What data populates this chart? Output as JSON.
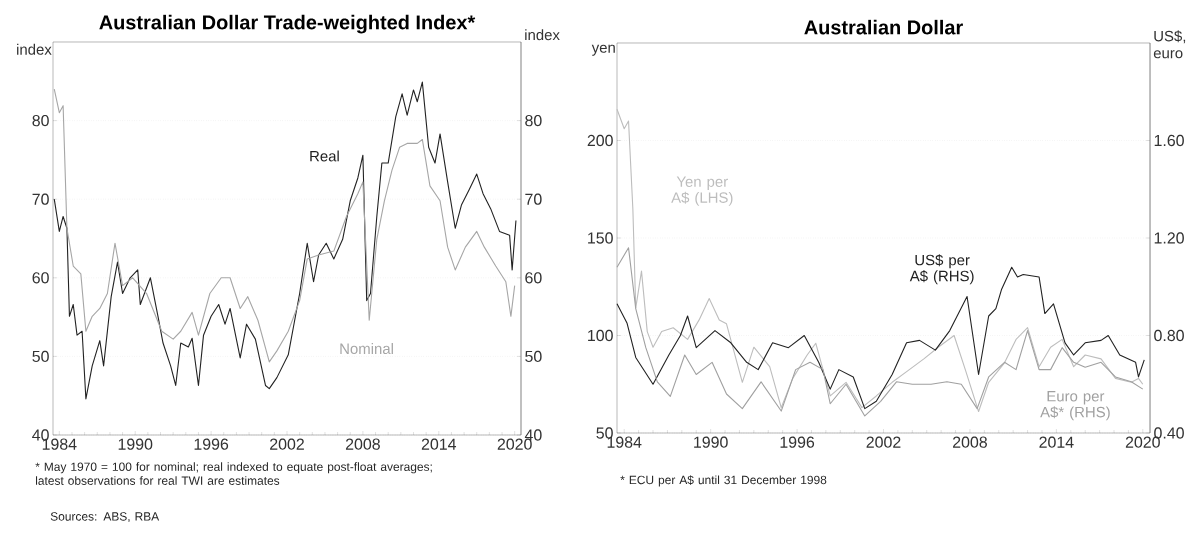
{
  "chart_data": [
    {
      "type": "line",
      "title": "Australian Dollar Trade-weighted Index*",
      "ylabel": "index",
      "y2label": "index",
      "grid": "y",
      "xlim": [
        1984,
        2021
      ],
      "xticks": [
        {
          "value": 1984.5,
          "label": "1984"
        },
        {
          "value": 1990.5,
          "label": "1990"
        },
        {
          "value": 1996.5,
          "label": "1996"
        },
        {
          "value": 2002.5,
          "label": "2002"
        },
        {
          "value": 2008.5,
          "label": "2008"
        },
        {
          "value": 2014.5,
          "label": "2014"
        },
        {
          "value": 2020.5,
          "label": "2020"
        }
      ],
      "ylim": [
        40,
        90
      ],
      "yticks": [
        40,
        50,
        60,
        70,
        80
      ],
      "y2lim": [
        40,
        90
      ],
      "y2ticks": [
        40,
        50,
        60,
        70,
        80
      ],
      "series": [
        {
          "name": "Real",
          "color": "#222222",
          "x": [
            1984.1,
            1984.5,
            1984.8,
            1985.1,
            1985.3,
            1985.6,
            1985.9,
            1986.3,
            1986.6,
            1987.1,
            1987.7,
            1988.0,
            1988.6,
            1989.1,
            1989.5,
            1990.1,
            1990.7,
            1990.9,
            1991.7,
            1992.3,
            1992.7,
            1993.3,
            1993.7,
            1994.1,
            1994.7,
            1995.0,
            1995.5,
            1995.9,
            1996.5,
            1997.1,
            1997.6,
            1998.0,
            1998.8,
            1999.3,
            2000.0,
            2000.8,
            2001.1,
            2001.7,
            2002.6,
            2003.5,
            2004.1,
            2004.6,
            2005.0,
            2005.6,
            2006.2,
            2006.9,
            2007.5,
            2008.1,
            2008.5,
            2008.8,
            2009.1,
            2009.6,
            2010.0,
            2010.5,
            2011.1,
            2011.6,
            2012.0,
            2012.5,
            2012.8,
            2013.2,
            2013.7,
            2014.2,
            2014.6,
            2015.2,
            2015.8,
            2016.3,
            2016.9,
            2017.5,
            2018.0,
            2018.6,
            2019.3,
            2020.1,
            2020.3,
            2020.6
          ],
          "values": [
            70.0,
            65.9,
            67.8,
            66.3,
            55.1,
            56.6,
            52.7,
            53.2,
            44.6,
            48.8,
            52.0,
            48.8,
            57.6,
            62.0,
            58.0,
            60.0,
            61.0,
            56.6,
            60.0,
            55.1,
            51.7,
            48.8,
            46.3,
            51.7,
            51.2,
            52.3,
            46.3,
            52.7,
            55.1,
            56.6,
            54.1,
            56.1,
            49.8,
            54.1,
            52.2,
            46.3,
            45.9,
            47.3,
            50.2,
            58.0,
            64.4,
            59.5,
            62.9,
            64.4,
            62.4,
            64.9,
            69.8,
            72.7,
            75.6,
            57.1,
            58.0,
            67.8,
            74.6,
            74.6,
            80.5,
            83.4,
            80.7,
            83.9,
            82.4,
            84.9,
            76.6,
            74.6,
            78.3,
            72.2,
            66.3,
            69.3,
            71.2,
            73.2,
            70.7,
            68.8,
            65.9,
            65.4,
            61.0,
            67.3
          ]
        },
        {
          "name": "Nominal",
          "color": "#a6a6a6",
          "x": [
            1984.1,
            1984.5,
            1984.8,
            1985.1,
            1985.6,
            1986.2,
            1986.6,
            1987.1,
            1987.7,
            1988.3,
            1988.9,
            1989.5,
            1990.3,
            1991.4,
            1992.6,
            1993.5,
            1994.1,
            1995.0,
            1995.5,
            1996.4,
            1997.3,
            1998.0,
            1998.8,
            1999.4,
            2000.2,
            2001.1,
            2001.7,
            2002.6,
            2003.5,
            2004.1,
            2005.0,
            2006.2,
            2007.2,
            2008.1,
            2008.5,
            2009.0,
            2009.6,
            2010.2,
            2010.8,
            2011.4,
            2012.0,
            2012.8,
            2013.2,
            2013.8,
            2014.6,
            2015.2,
            2015.8,
            2016.6,
            2017.5,
            2018.1,
            2019.0,
            2019.8,
            2020.2,
            2020.5
          ],
          "values": [
            84.0,
            81.0,
            81.9,
            66.3,
            61.5,
            60.5,
            53.2,
            55.1,
            56.1,
            58.0,
            64.4,
            59.0,
            60.0,
            58.0,
            53.2,
            52.2,
            53.2,
            55.6,
            52.7,
            58.0,
            60.0,
            60.0,
            56.1,
            57.6,
            54.6,
            49.3,
            50.7,
            53.2,
            57.1,
            62.4,
            62.9,
            63.4,
            67.8,
            70.7,
            72.2,
            54.6,
            64.9,
            69.8,
            73.7,
            76.6,
            77.1,
            77.1,
            77.6,
            71.7,
            69.8,
            63.9,
            61.0,
            63.9,
            65.9,
            63.9,
            61.5,
            59.5,
            55.1,
            59.0
          ]
        }
      ],
      "annotations": [
        "* May 1970 = 100 for nominal; real indexed to equate post-float averages; latest observations for real TWI are estimates",
        "Sources: ABS, RBA"
      ]
    },
    {
      "type": "line",
      "title": "Australian Dollar",
      "ylabel": "yen",
      "y2label": "US$, euro",
      "grid": "y",
      "xlim": [
        1984,
        2021
      ],
      "xticks": [
        {
          "value": 1984.5,
          "label": "1984"
        },
        {
          "value": 1990.5,
          "label": "1990"
        },
        {
          "value": 1996.5,
          "label": "1996"
        },
        {
          "value": 2002.5,
          "label": "2002"
        },
        {
          "value": 2008.5,
          "label": "2008"
        },
        {
          "value": 2014.5,
          "label": "2014"
        },
        {
          "value": 2020.5,
          "label": "2020"
        }
      ],
      "ylim": [
        50,
        250
      ],
      "yticks": [
        50,
        100,
        150,
        200
      ],
      "y2lim": [
        0.4,
        2.0
      ],
      "y2ticks": [
        {
          "value": 0.4,
          "label": "0.40"
        },
        {
          "value": 0.8,
          "label": "0.80"
        },
        {
          "value": 1.2,
          "label": "1.20"
        },
        {
          "value": 1.6,
          "label": "1.60"
        }
      ],
      "series": [
        {
          "name": "Yen per A$ (LHS)",
          "color": "#bdbdbd",
          "x": [
            1984.0,
            1984.5,
            1984.8,
            1985.1,
            1985.3,
            1985.7,
            1986.1,
            1986.5,
            1987.1,
            1987.9,
            1988.9,
            1989.7,
            1990.4,
            1991.1,
            1991.6,
            1992.7,
            1993.5,
            1994.6,
            1995.4,
            1996.2,
            1997.2,
            1997.8,
            1998.8,
            1999.9,
            2001.0,
            2002.0,
            2003.1,
            2004.2,
            2005.3,
            2006.3,
            2007.4,
            2008.2,
            2009.1,
            2009.8,
            2010.9,
            2011.7,
            2012.5,
            2013.3,
            2014.1,
            2014.9,
            2015.7,
            2016.5,
            2017.6,
            2018.6,
            2019.7,
            2020.2,
            2020.5
          ],
          "values": [
            216,
            206,
            210,
            165,
            114,
            133,
            102,
            94,
            102,
            104,
            98,
            108,
            119,
            108,
            106,
            76,
            94,
            84,
            63,
            78,
            90,
            96,
            69,
            76,
            63,
            69,
            76,
            82,
            88,
            94,
            100,
            82,
            61,
            76,
            86,
            98,
            104,
            84,
            94,
            98,
            84,
            90,
            88,
            78,
            76,
            78,
            75
          ]
        },
        {
          "name": "US$ per A$ (RHS)",
          "color": "#222222",
          "axis": "y2",
          "x": [
            1984.0,
            1984.7,
            1985.3,
            1986.5,
            1987.6,
            1988.4,
            1988.9,
            1989.5,
            1990.8,
            1991.9,
            1993.0,
            1993.8,
            1994.8,
            1995.9,
            1997.0,
            1998.0,
            1998.8,
            1999.4,
            2000.4,
            2001.2,
            2002.0,
            2003.1,
            2004.1,
            2005.0,
            2006.1,
            2007.1,
            2008.3,
            2009.1,
            2009.8,
            2010.3,
            2010.7,
            2011.4,
            2011.8,
            2012.2,
            2013.3,
            2013.7,
            2014.3,
            2015.1,
            2015.7,
            2016.5,
            2017.6,
            2018.1,
            2018.9,
            2020.0,
            2020.2,
            2020.6
          ],
          "values": [
            0.93,
            0.85,
            0.71,
            0.6,
            0.72,
            0.8,
            0.88,
            0.75,
            0.82,
            0.77,
            0.69,
            0.66,
            0.77,
            0.75,
            0.8,
            0.69,
            0.58,
            0.66,
            0.63,
            0.5,
            0.53,
            0.64,
            0.77,
            0.78,
            0.74,
            0.82,
            0.96,
            0.64,
            0.88,
            0.91,
            0.99,
            1.08,
            1.04,
            1.05,
            1.04,
            0.89,
            0.93,
            0.77,
            0.72,
            0.77,
            0.78,
            0.8,
            0.72,
            0.69,
            0.63,
            0.7
          ]
        },
        {
          "name": "Euro per A$* (RHS)",
          "color": "#a0a0a0",
          "axis": "y2",
          "x": [
            1984.0,
            1984.8,
            1985.3,
            1986.0,
            1986.8,
            1987.7,
            1988.7,
            1989.5,
            1990.6,
            1991.6,
            1992.7,
            1994.0,
            1995.4,
            1996.4,
            1997.4,
            1998.3,
            1998.8,
            1999.9,
            2001.2,
            2002.3,
            2003.4,
            2004.5,
            2005.8,
            2006.9,
            2007.9,
            2009.0,
            2009.8,
            2010.9,
            2011.7,
            2012.5,
            2013.3,
            2014.1,
            2014.9,
            2015.7,
            2016.5,
            2017.6,
            2018.6,
            2019.7,
            2020.5
          ],
          "values": [
            1.08,
            1.16,
            0.91,
            0.75,
            0.61,
            0.55,
            0.72,
            0.64,
            0.69,
            0.56,
            0.5,
            0.61,
            0.49,
            0.66,
            0.69,
            0.66,
            0.52,
            0.6,
            0.47,
            0.53,
            0.61,
            0.6,
            0.6,
            0.61,
            0.6,
            0.5,
            0.63,
            0.69,
            0.66,
            0.82,
            0.66,
            0.66,
            0.75,
            0.69,
            0.67,
            0.69,
            0.63,
            0.61,
            0.58
          ]
        }
      ],
      "annotations": [
        "* ECU per A$ until 31 December 1998"
      ]
    }
  ]
}
